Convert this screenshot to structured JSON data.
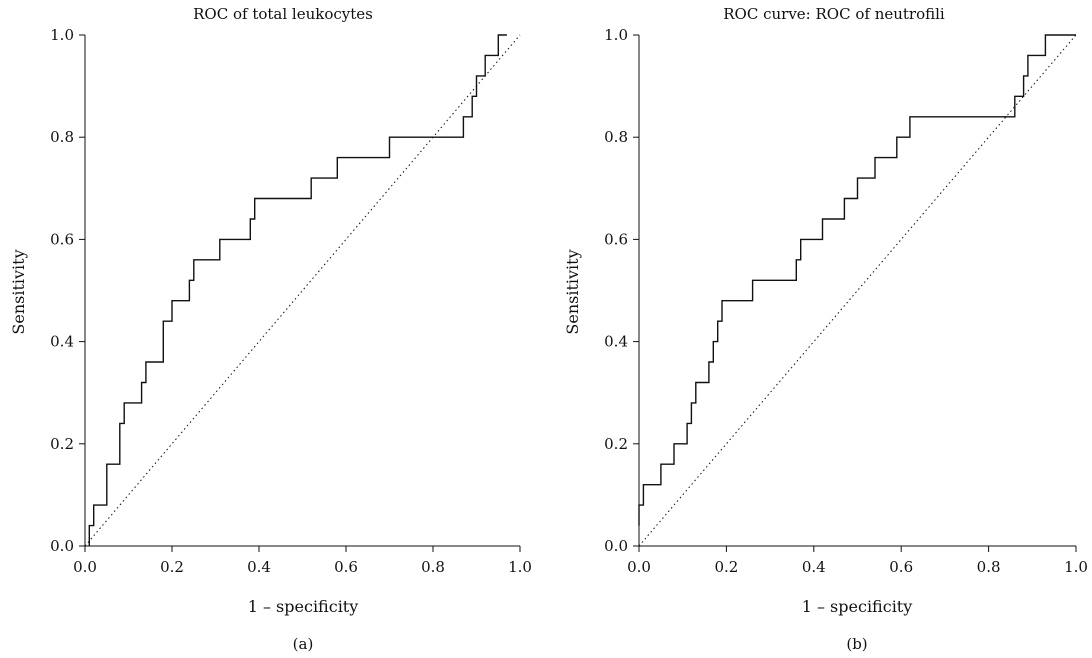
{
  "chart_data": [
    {
      "type": "line",
      "title": "ROC of total leukocytes",
      "xlabel": "1 – specificity",
      "ylabel": "Sensitivity",
      "panel_label": "(a)",
      "xlim": [
        0,
        1
      ],
      "ylim": [
        0,
        1
      ],
      "xticks": [
        "0.0",
        "0.2",
        "0.4",
        "0.6",
        "0.8",
        "1.0"
      ],
      "yticks": [
        "0.0",
        "0.2",
        "0.4",
        "0.6",
        "0.8",
        "1.0"
      ],
      "grid": false,
      "reference_line": {
        "style": "dotted",
        "from": [
          0,
          0
        ],
        "to": [
          1,
          1
        ]
      },
      "series": [
        {
          "x": [
            0.01,
            0.01,
            0.02,
            0.02,
            0.05,
            0.05,
            0.08,
            0.08,
            0.09,
            0.09,
            0.1,
            0.1,
            0.13,
            0.13,
            0.14,
            0.14,
            0.18,
            0.18,
            0.19,
            0.19,
            0.2,
            0.2,
            0.24,
            0.24,
            0.25,
            0.25,
            0.26,
            0.26,
            0.31,
            0.31,
            0.38,
            0.38,
            0.39,
            0.39,
            0.52,
            0.52,
            0.58,
            0.58,
            0.7,
            0.7,
            0.87,
            0.87,
            0.89,
            0.89,
            0.9,
            0.9,
            0.91,
            0.91,
            0.92,
            0.92,
            0.95,
            0.95,
            0.97
          ],
          "y": [
            0.0,
            0.04,
            0.04,
            0.08,
            0.08,
            0.16,
            0.16,
            0.24,
            0.24,
            0.28,
            0.28,
            0.28,
            0.28,
            0.32,
            0.32,
            0.36,
            0.36,
            0.44,
            0.44,
            0.44,
            0.44,
            0.48,
            0.48,
            0.52,
            0.52,
            0.56,
            0.56,
            0.56,
            0.56,
            0.6,
            0.6,
            0.64,
            0.64,
            0.68,
            0.68,
            0.72,
            0.72,
            0.76,
            0.76,
            0.8,
            0.8,
            0.84,
            0.84,
            0.88,
            0.88,
            0.92,
            0.92,
            0.92,
            0.92,
            0.96,
            0.96,
            1.0,
            1.0
          ]
        }
      ]
    },
    {
      "type": "line",
      "title": "ROC curve: ROC of neutrofili",
      "xlabel": "1 – specificity",
      "ylabel": "Sensitivity",
      "panel_label": "(b)",
      "xlim": [
        0,
        1
      ],
      "ylim": [
        0,
        1
      ],
      "xticks": [
        "0.0",
        "0.2",
        "0.4",
        "0.6",
        "0.8",
        "1.0"
      ],
      "yticks": [
        "0.0",
        "0.2",
        "0.4",
        "0.6",
        "0.8",
        "1.0"
      ],
      "grid": false,
      "reference_line": {
        "style": "dotted",
        "from": [
          0,
          0
        ],
        "to": [
          1,
          1
        ]
      },
      "series": [
        {
          "x": [
            0.0,
            0.0,
            0.01,
            0.01,
            0.05,
            0.05,
            0.08,
            0.08,
            0.11,
            0.11,
            0.12,
            0.12,
            0.13,
            0.13,
            0.16,
            0.16,
            0.17,
            0.17,
            0.18,
            0.18,
            0.19,
            0.19,
            0.2,
            0.2,
            0.26,
            0.26,
            0.36,
            0.36,
            0.37,
            0.37,
            0.42,
            0.42,
            0.47,
            0.47,
            0.5,
            0.5,
            0.54,
            0.54,
            0.59,
            0.59,
            0.62,
            0.62,
            0.64,
            0.64,
            0.85,
            0.85,
            0.86,
            0.86,
            0.88,
            0.88,
            0.89,
            0.89,
            0.9,
            0.9,
            0.93,
            0.93,
            1.0
          ],
          "y": [
            0.04,
            0.08,
            0.08,
            0.12,
            0.12,
            0.16,
            0.16,
            0.2,
            0.2,
            0.24,
            0.24,
            0.28,
            0.28,
            0.32,
            0.32,
            0.36,
            0.36,
            0.4,
            0.4,
            0.44,
            0.44,
            0.48,
            0.48,
            0.48,
            0.48,
            0.52,
            0.52,
            0.56,
            0.56,
            0.6,
            0.6,
            0.64,
            0.64,
            0.68,
            0.68,
            0.72,
            0.72,
            0.76,
            0.76,
            0.8,
            0.8,
            0.84,
            0.84,
            0.84,
            0.84,
            0.84,
            0.84,
            0.88,
            0.88,
            0.92,
            0.92,
            0.96,
            0.96,
            0.96,
            0.96,
            1.0,
            1.0
          ]
        }
      ]
    }
  ]
}
